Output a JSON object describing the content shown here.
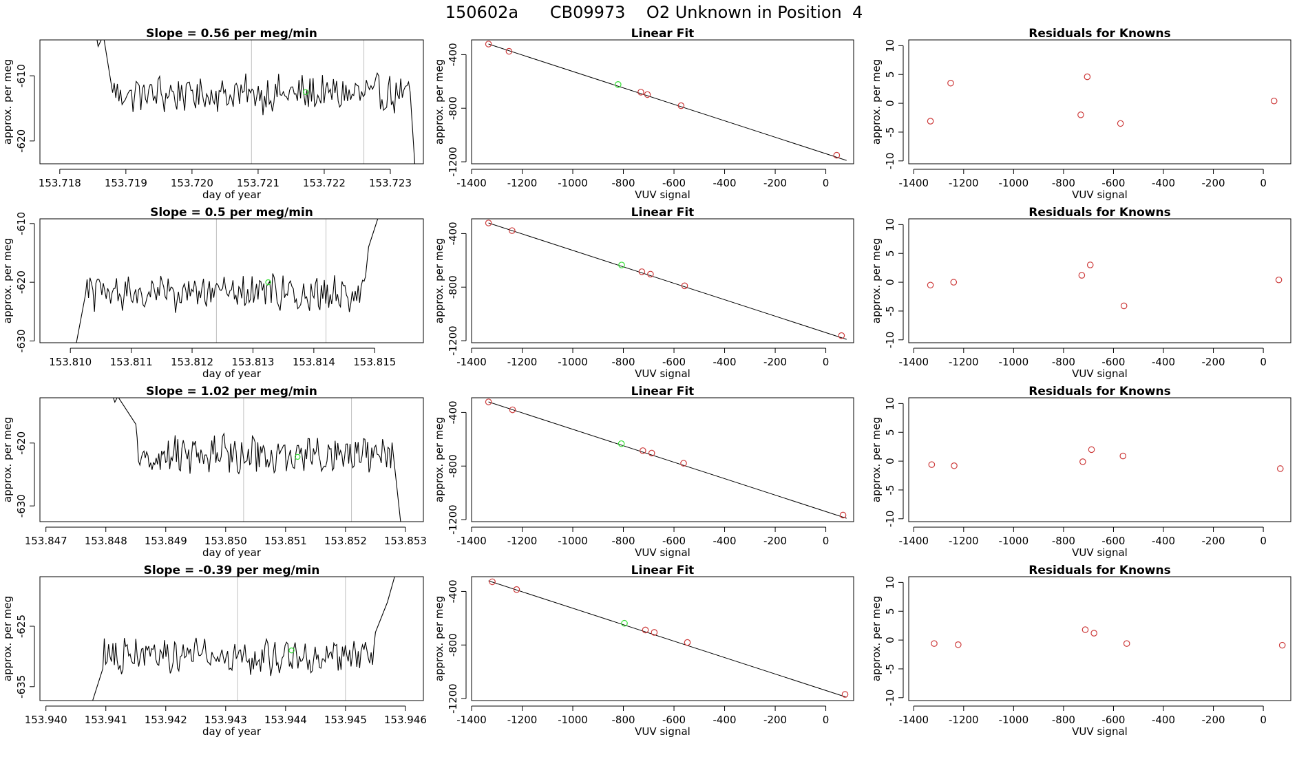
{
  "figure": {
    "title": "150602a      CB09973    O2 Unknown in Position  4"
  },
  "colors": {
    "trace": "#000000",
    "fit_line": "#000000",
    "points": "#cd3b3b",
    "unknown": "#33dd33",
    "vline": "#c0c0c0",
    "frame": "#000000"
  },
  "chart_data": [
    {
      "type": "line",
      "title": "Slope =  0.56  per meg/min",
      "xlabel": "day of year",
      "ylabel": "approx. per meg",
      "xlim": [
        153.7177,
        153.7235
      ],
      "ylim": [
        -623.5,
        -604.5
      ],
      "xticks": [
        153.718,
        153.719,
        153.72,
        153.721,
        153.722,
        153.723
      ],
      "xtick_labels": [
        "153.718",
        "153.719",
        "153.720",
        "153.721",
        "153.722",
        "153.723"
      ],
      "yticks": [
        -620,
        -610
      ],
      "ytick_labels": [
        "-620",
        "-610"
      ],
      "vlines": [
        153.7209,
        153.7226
      ],
      "trace_start": 153.71854,
      "trace_end": 153.72337,
      "trace_base": -612.8,
      "trace_amp": 2.4,
      "trace_head": [
        [
          153.71854,
          -603.0
        ],
        [
          153.71858,
          -605.5
        ],
        [
          153.71866,
          -603.8
        ],
        [
          153.7188,
          -612.6
        ]
      ],
      "trace_tail": [
        [
          153.7233,
          -612.5
        ],
        [
          153.72337,
          -623.5
        ]
      ],
      "unknown_point": [
        153.72172,
        -612.5
      ]
    },
    {
      "type": "scatter",
      "title": "Linear Fit",
      "xlabel": "VUV signal",
      "ylabel": "approx. per meg",
      "xlim": [
        -1400,
        110
      ],
      "ylim": [
        -1215,
        -290
      ],
      "xticks": [
        -1400,
        -1200,
        -1000,
        -800,
        -600,
        -400,
        -200,
        0
      ],
      "xtick_labels": [
        "-1400",
        "-1200",
        "-1000",
        "-800",
        "-600",
        "-400",
        "-200",
        "0"
      ],
      "yticks": [
        -1200,
        -800,
        -400
      ],
      "ytick_labels": [
        "-1200",
        "-800",
        "-400"
      ],
      "points": [
        [
          -1333,
          -321
        ],
        [
          -1252,
          -375
        ],
        [
          -731,
          -680
        ],
        [
          -705,
          -698
        ],
        [
          -572,
          -781
        ],
        [
          43,
          -1151
        ]
      ],
      "unknown_point": [
        -821,
        -623
      ],
      "fit_line": [
        [
          -1333,
          -321
        ],
        [
          82,
          -1190
        ]
      ]
    },
    {
      "type": "scatter",
      "title": "Residuals for Knowns",
      "xlabel": "VUV signal",
      "ylabel": "approx. per meg",
      "xlim": [
        -1420,
        110
      ],
      "ylim": [
        -10.5,
        11
      ],
      "xticks": [
        -1400,
        -1200,
        -1000,
        -800,
        -600,
        -400,
        -200,
        0
      ],
      "xtick_labels": [
        "-1400",
        "-1200",
        "-1000",
        "-800",
        "-600",
        "-400",
        "-200",
        "0"
      ],
      "yticks": [
        -10,
        -5,
        0,
        5,
        10
      ],
      "ytick_labels": [
        "-10",
        "-5",
        "0",
        "5",
        "10"
      ],
      "points": [
        [
          -1333,
          -3.1
        ],
        [
          -1252,
          3.5
        ],
        [
          -731,
          -2.0
        ],
        [
          -705,
          4.6
        ],
        [
          -572,
          -3.5
        ],
        [
          43,
          0.4
        ]
      ]
    },
    {
      "type": "line",
      "title": "Slope =  0.5  per meg/min",
      "xlabel": "day of year",
      "ylabel": "approx. per meg",
      "xlim": [
        153.8095,
        153.8158
      ],
      "ylim": [
        -630.3,
        -609.2
      ],
      "xticks": [
        153.81,
        153.811,
        153.812,
        153.813,
        153.814,
        153.815
      ],
      "xtick_labels": [
        "153.810",
        "153.811",
        "153.812",
        "153.813",
        "153.814",
        "153.815"
      ],
      "yticks": [
        -630,
        -620,
        -610
      ],
      "ytick_labels": [
        "-630",
        "-620",
        "-610"
      ],
      "vlines": [
        153.8124,
        153.8142
      ],
      "trace_start": 153.8101,
      "trace_end": 153.8149,
      "trace_base": -621.8,
      "trace_amp": 2.6,
      "trace_head": [
        [
          153.8101,
          -630.3
        ],
        [
          153.81025,
          -622.0
        ]
      ],
      "trace_tail": [
        [
          153.81485,
          -619.0
        ],
        [
          153.8149,
          -614.0
        ],
        [
          153.81505,
          -609.2
        ]
      ],
      "unknown_point": [
        153.81325,
        -620.0
      ]
    },
    {
      "type": "scatter",
      "title": "Linear Fit",
      "xlabel": "VUV signal",
      "ylabel": "approx. per meg",
      "xlim": [
        -1400,
        110
      ],
      "ylim": [
        -1215,
        -290
      ],
      "xticks": [
        -1400,
        -1200,
        -1000,
        -800,
        -600,
        -400,
        -200,
        0
      ],
      "xtick_labels": [
        "-1400",
        "-1200",
        "-1000",
        "-800",
        "-600",
        "-400",
        "-200",
        "0"
      ],
      "yticks": [
        -1200,
        -800,
        -400
      ],
      "ytick_labels": [
        "-1200",
        "-800",
        "-400"
      ],
      "points": [
        [
          -1333,
          -321
        ],
        [
          -1240,
          -378
        ],
        [
          -727,
          -685
        ],
        [
          -693,
          -703
        ],
        [
          -558,
          -790
        ],
        [
          62,
          -1162
        ]
      ],
      "unknown_point": [
        -807,
        -635
      ],
      "fit_line": [
        [
          -1333,
          -321
        ],
        [
          82,
          -1190
        ]
      ]
    },
    {
      "type": "scatter",
      "title": "Residuals for Knowns",
      "xlabel": "VUV signal",
      "ylabel": "approx. per meg",
      "xlim": [
        -1420,
        110
      ],
      "ylim": [
        -10.5,
        11
      ],
      "xticks": [
        -1400,
        -1200,
        -1000,
        -800,
        -600,
        -400,
        -200,
        0
      ],
      "xtick_labels": [
        "-1400",
        "-1200",
        "-1000",
        "-800",
        "-600",
        "-400",
        "-200",
        "0"
      ],
      "yticks": [
        -10,
        -5,
        0,
        5,
        10
      ],
      "ytick_labels": [
        "-10",
        "-5",
        "0",
        "5",
        "10"
      ],
      "points": [
        [
          -1333,
          -0.5
        ],
        [
          -1240,
          0.0
        ],
        [
          -727,
          1.2
        ],
        [
          -693,
          3.0
        ],
        [
          -558,
          -4.1
        ],
        [
          62,
          0.4
        ]
      ]
    },
    {
      "type": "line",
      "title": "Slope =  1.02  per meg/min",
      "xlabel": "day of year",
      "ylabel": "approx. per meg",
      "xlim": [
        153.8469,
        153.8533
      ],
      "ylim": [
        -632.5,
        -612.8
      ],
      "xticks": [
        153.847,
        153.848,
        153.849,
        153.85,
        153.851,
        153.852,
        153.853
      ],
      "xtick_labels": [
        "153.847",
        "153.848",
        "153.849",
        "153.850",
        "153.851",
        "153.852",
        "153.853"
      ],
      "yticks": [
        -630,
        -620
      ],
      "ytick_labels": [
        "-630",
        "-620"
      ],
      "vlines": [
        153.8503,
        153.8521
      ],
      "trace_start": 153.84808,
      "trace_end": 153.85292,
      "trace_base": -621.8,
      "trace_amp": 2.5,
      "trace_head": [
        [
          153.84808,
          -611.5
        ],
        [
          153.84815,
          -613.5
        ],
        [
          153.8482,
          -612.6
        ],
        [
          153.8485,
          -617.0
        ]
      ],
      "trace_tail": [
        [
          153.8528,
          -622.0
        ],
        [
          153.85292,
          -632.5
        ]
      ],
      "unknown_point": [
        153.8512,
        -622.2
      ]
    },
    {
      "type": "scatter",
      "title": "Linear Fit",
      "xlabel": "VUV signal",
      "ylabel": "approx. per meg",
      "xlim": [
        -1400,
        110
      ],
      "ylim": [
        -1215,
        -290
      ],
      "xticks": [
        -1400,
        -1200,
        -1000,
        -800,
        -600,
        -400,
        -200,
        0
      ],
      "xtick_labels": [
        "-1400",
        "-1200",
        "-1000",
        "-800",
        "-600",
        "-400",
        "-200",
        "0"
      ],
      "yticks": [
        -1200,
        -800,
        -400
      ],
      "ytick_labels": [
        "-1200",
        "-800",
        "-400"
      ],
      "points": [
        [
          -1333,
          -321
        ],
        [
          -1238,
          -380
        ],
        [
          -723,
          -685
        ],
        [
          -688,
          -703
        ],
        [
          -562,
          -779
        ],
        [
          68,
          -1166
        ]
      ],
      "unknown_point": [
        -808,
        -633
      ],
      "fit_line": [
        [
          -1333,
          -321
        ],
        [
          82,
          -1190
        ]
      ]
    },
    {
      "type": "scatter",
      "title": "Residuals for Knowns",
      "xlabel": "VUV signal",
      "ylabel": "approx. per meg",
      "xlim": [
        -1420,
        110
      ],
      "ylim": [
        -10.5,
        11
      ],
      "xticks": [
        -1400,
        -1200,
        -1000,
        -800,
        -600,
        -400,
        -200,
        0
      ],
      "xtick_labels": [
        "-1400",
        "-1200",
        "-1000",
        "-800",
        "-600",
        "-400",
        "-200",
        "0"
      ],
      "yticks": [
        -10,
        -5,
        0,
        5,
        10
      ],
      "ytick_labels": [
        "-10",
        "-5",
        "0",
        "5",
        "10"
      ],
      "points": [
        [
          -1328,
          -0.6
        ],
        [
          -1238,
          -0.8
        ],
        [
          -723,
          -0.1
        ],
        [
          -688,
          2.0
        ],
        [
          -562,
          0.9
        ],
        [
          68,
          -1.3
        ]
      ]
    },
    {
      "type": "line",
      "title": "Slope =  -0.39  per meg/min",
      "xlabel": "day of year",
      "ylabel": "approx. per meg",
      "xlim": [
        153.9399,
        153.9463
      ],
      "ylim": [
        -637.3,
        -616.8
      ],
      "xticks": [
        153.94,
        153.941,
        153.942,
        153.943,
        153.944,
        153.945,
        153.946
      ],
      "xtick_labels": [
        "153.940",
        "153.941",
        "153.942",
        "153.943",
        "153.944",
        "153.945",
        "153.946"
      ],
      "yticks": [
        -635,
        -625
      ],
      "ytick_labels": [
        "-635",
        "-625"
      ],
      "vlines": [
        153.9432,
        153.945
      ],
      "trace_start": 153.9408,
      "trace_end": 153.9455,
      "trace_base": -630.0,
      "trace_amp": 2.4,
      "trace_head": [
        [
          153.94078,
          -637.3
        ],
        [
          153.94095,
          -632.0
        ]
      ],
      "trace_tail": [
        [
          153.9455,
          -626.0
        ],
        [
          153.9457,
          -621.0
        ],
        [
          153.94582,
          -616.8
        ]
      ],
      "unknown_point": [
        153.9441,
        -629.0
      ]
    },
    {
      "type": "scatter",
      "title": "Linear Fit",
      "xlabel": "VUV signal",
      "ylabel": "approx. per meg",
      "xlim": [
        -1400,
        110
      ],
      "ylim": [
        -1215,
        -290
      ],
      "xticks": [
        -1400,
        -1200,
        -1000,
        -800,
        -600,
        -400,
        -200,
        0
      ],
      "xtick_labels": [
        "-1400",
        "-1200",
        "-1000",
        "-800",
        "-600",
        "-400",
        "-200",
        "0"
      ],
      "yticks": [
        -1200,
        -800,
        -400
      ],
      "ytick_labels": [
        "-1200",
        "-800",
        "-400"
      ],
      "points": [
        [
          -1318,
          -328
        ],
        [
          -1222,
          -386
        ],
        [
          -713,
          -688
        ],
        [
          -678,
          -706
        ],
        [
          -547,
          -781
        ],
        [
          76,
          -1169
        ]
      ],
      "unknown_point": [
        -796,
        -638
      ],
      "fit_line": [
        [
          -1333,
          -321
        ],
        [
          82,
          -1190
        ]
      ]
    },
    {
      "type": "scatter",
      "title": "Residuals for Knowns",
      "xlabel": "VUV signal",
      "ylabel": "approx. per meg",
      "xlim": [
        -1420,
        110
      ],
      "ylim": [
        -10.5,
        11
      ],
      "xticks": [
        -1400,
        -1200,
        -1000,
        -800,
        -600,
        -400,
        -200,
        0
      ],
      "xtick_labels": [
        "-1400",
        "-1200",
        "-1000",
        "-800",
        "-600",
        "-400",
        "-200",
        "0"
      ],
      "yticks": [
        -10,
        -5,
        0,
        5,
        10
      ],
      "ytick_labels": [
        "-10",
        "-5",
        "0",
        "5",
        "10"
      ],
      "points": [
        [
          -1318,
          -0.6
        ],
        [
          -1222,
          -0.8
        ],
        [
          -713,
          1.8
        ],
        [
          -678,
          1.2
        ],
        [
          -547,
          -0.6
        ],
        [
          76,
          -0.9
        ]
      ]
    }
  ]
}
